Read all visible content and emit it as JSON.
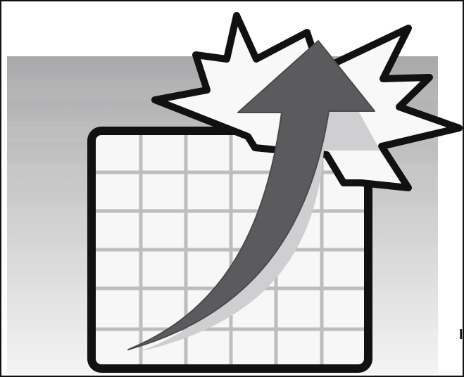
{
  "illustration": {
    "icon": "growth-chart-icon",
    "colors": {
      "frame_border": "#111111",
      "band_dark": "#a9a9ab",
      "band_light": "#f4f4f4",
      "grid_fill": "#f7f7f7",
      "grid_lines": "#bdbdbf",
      "outline": "#111111",
      "burst_fill": "#f8f8f8",
      "arrow_fill": "#5b5b5d",
      "arrow_shadow": "#cfcfd1"
    }
  },
  "edge_text": "I"
}
